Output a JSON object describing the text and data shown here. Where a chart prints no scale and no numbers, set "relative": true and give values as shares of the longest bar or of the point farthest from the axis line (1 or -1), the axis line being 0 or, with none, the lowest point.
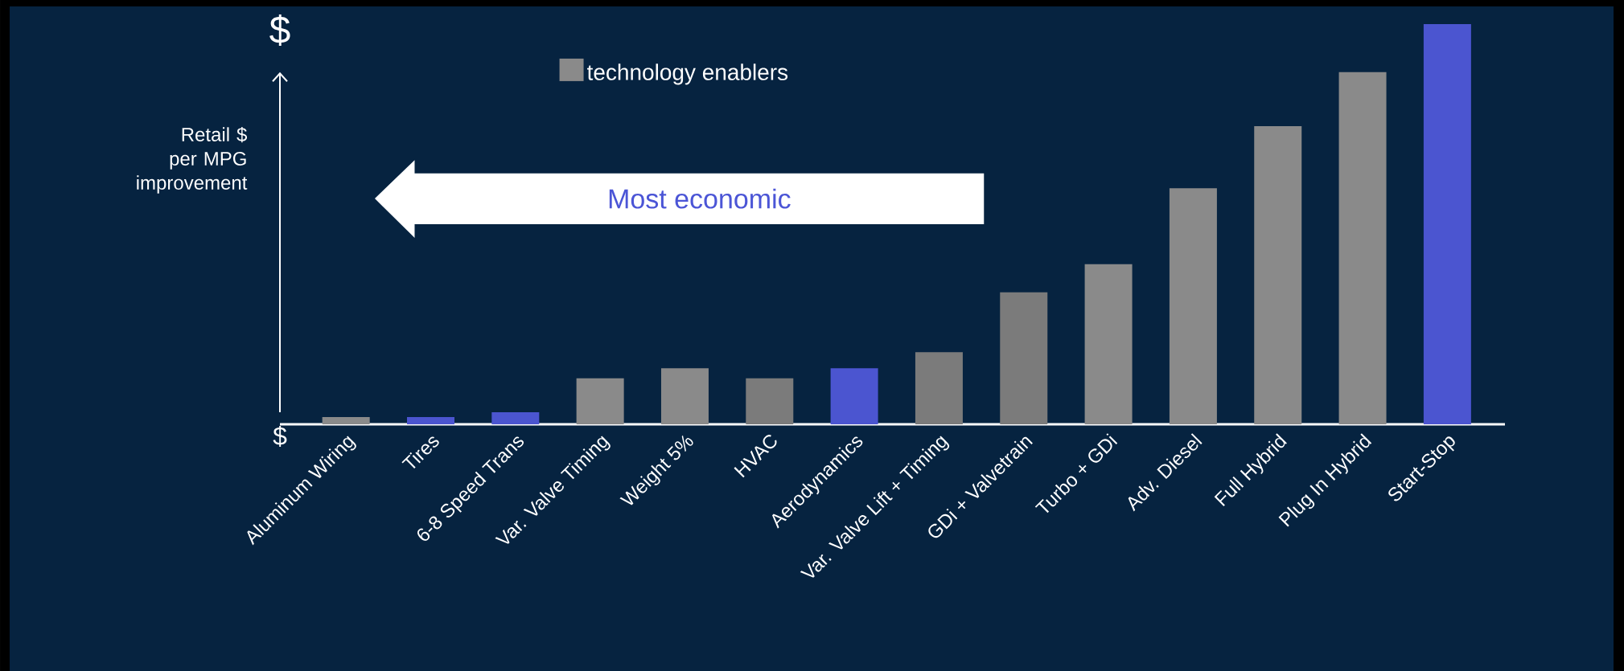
{
  "chart_data": {
    "type": "bar",
    "relative": true,
    "ylabel": "Retail $ per MPG improvement",
    "legend": "top left",
    "categories": [
      "Aluminum Wiring",
      "Tires",
      "6-8 Speed Trans",
      "Var. Valve Timing",
      "Weight 5%",
      "HVAC",
      "Aerodynamics",
      "Var. Valve Lift + Timing",
      "GDi + Valvetrain",
      "Turbo + GDi",
      "Adv. Diesel",
      "Full Hybrid",
      "Plug In Hybrid",
      "Start-Stop"
    ],
    "series": [
      {
        "name": "technology enablers",
        "color": "#8a8a8a",
        "colors": [
          "#8a8a8a",
          "#4b55d0",
          "#4b55d0",
          "#8a8a8a",
          "#8a8a8a",
          "#7b7b7b",
          "#4b55d0",
          "#7b7b7b",
          "#7b7b7b",
          "#8a8a8a",
          "#8a8a8a",
          "#8a8a8a",
          "#8a8a8a",
          "#4b55d0"
        ],
        "values": [
          0.018,
          0.018,
          0.03,
          0.115,
          0.14,
          0.115,
          0.14,
          0.18,
          0.33,
          0.4,
          0.59,
          0.745,
          0.88,
          1
        ]
      }
    ],
    "annotations": [
      "$",
      "$",
      "Most economic"
    ]
  }
}
